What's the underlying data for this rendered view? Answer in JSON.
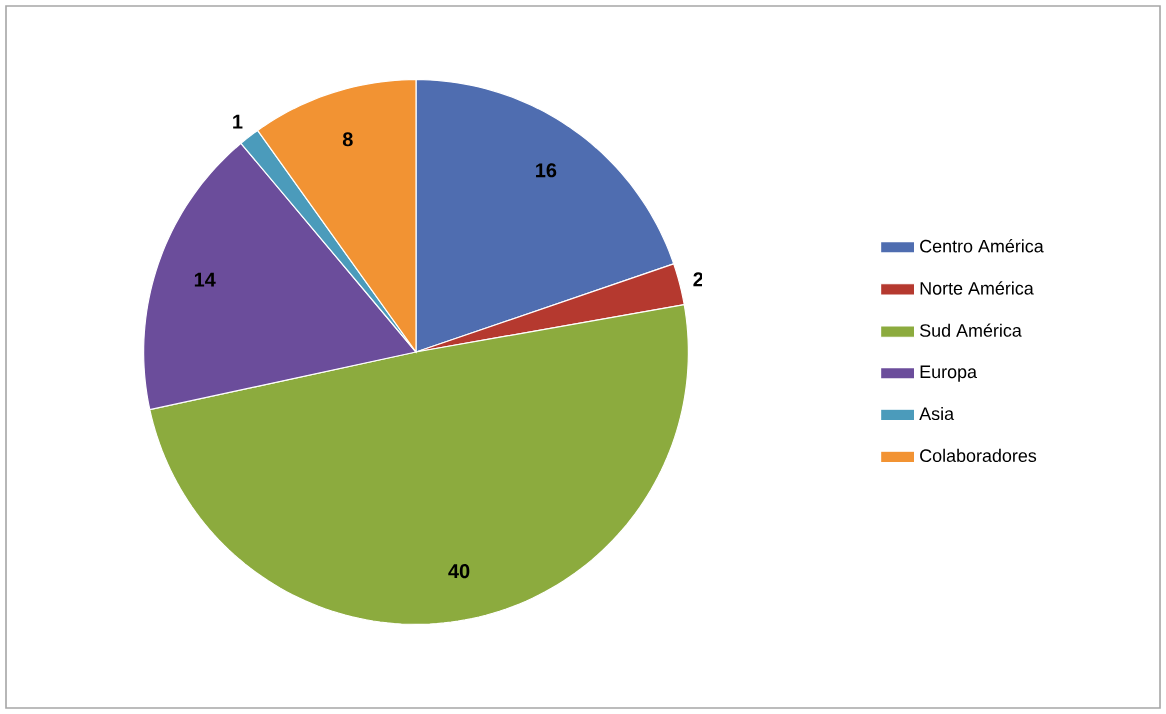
{
  "chart_data": {
    "type": "pie",
    "categories": [
      "Centro América",
      "Norte América",
      "Sud América",
      "Europa",
      "Asia",
      "Colaboradores"
    ],
    "values": [
      16,
      2,
      40,
      14,
      1,
      8
    ],
    "colors": [
      "#4f6db0",
      "#b5392f",
      "#8cab3e",
      "#6b4d9b",
      "#4b9bbb",
      "#f29333"
    ],
    "data_labels": true,
    "legend": "right"
  }
}
